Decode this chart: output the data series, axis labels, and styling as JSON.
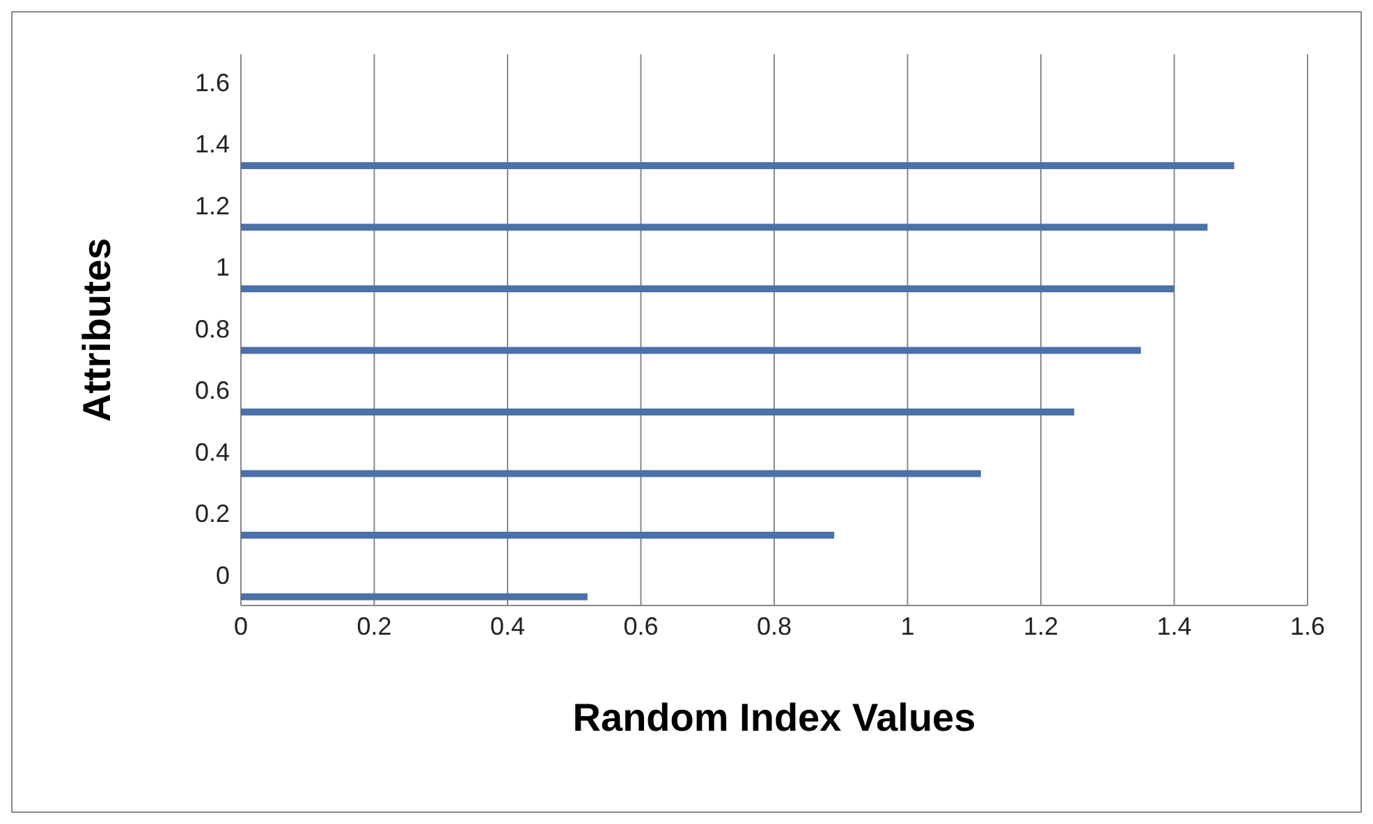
{
  "chart_data": {
    "type": "bar",
    "orientation": "horizontal",
    "xlabel": "Random Index Values",
    "ylabel": "Attributes",
    "x": [
      -0.07,
      0.13,
      0.33,
      0.53,
      0.73,
      0.93,
      1.13,
      1.33
    ],
    "values": [
      0.52,
      0.89,
      1.11,
      1.25,
      1.35,
      1.4,
      1.45,
      1.49
    ],
    "color": "#4a72a8",
    "xlim": [
      0,
      1.6
    ],
    "xticks": [
      0,
      0.2,
      0.4,
      0.6,
      0.8,
      1,
      1.2,
      1.4,
      1.6
    ],
    "ylim": [
      -0.1,
      1.69
    ],
    "yticks": [
      0,
      0.2,
      0.4,
      0.6,
      0.8,
      1,
      1.2,
      1.4,
      1.6
    ],
    "grid": "x"
  }
}
